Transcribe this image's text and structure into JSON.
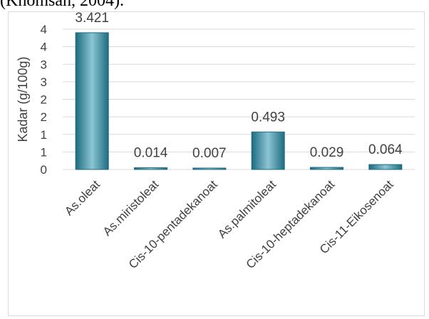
{
  "caption": "(Khomsah, 2004).",
  "chart_data": {
    "type": "bar",
    "title": "",
    "xlabel": "",
    "ylabel": "Kadar (g/100g)",
    "categories": [
      "As.oleat",
      "As.miristoleat",
      "Cis-10-pentadekanoat",
      "As.palmitoleat",
      "Cis-10-heptadekanoat",
      "Cis-11-Eikosenoat"
    ],
    "values": [
      3.421,
      0.014,
      0.007,
      0.493,
      0.029,
      0.064
    ],
    "data_labels": [
      "3.421",
      "0.014",
      "0.007",
      "0.493",
      "0.029",
      "0.064"
    ],
    "bar_heights_relative": [
      3.9,
      0.05,
      0.03,
      1.07,
      0.06,
      0.14
    ],
    "y_ticks": [
      "0",
      "1",
      "1",
      "2",
      "2",
      "3",
      "3",
      "4",
      "4"
    ],
    "ylim": [
      0,
      4
    ],
    "grid": true,
    "legend": "none",
    "colors": {
      "bar_top": "#8cc5d3",
      "bar_mid": "#2b8ba3",
      "bar_bottom": "#1d6b80",
      "grid": "#d9d9d9",
      "text": "#404040"
    }
  }
}
